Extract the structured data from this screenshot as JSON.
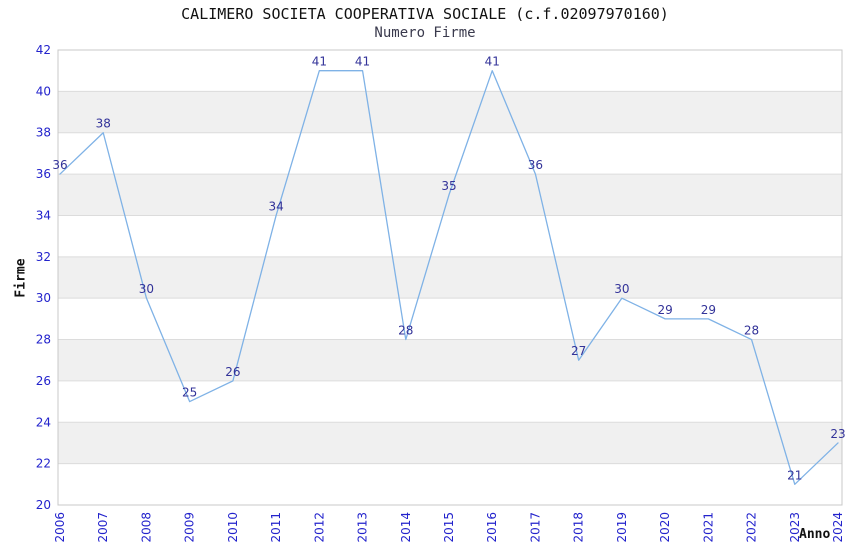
{
  "header": {
    "title": "CALIMERO SOCIETA COOPERATIVA SOCIALE (c.f.02097970160)",
    "subtitle": "Numero Firme"
  },
  "axes": {
    "ylabel": "Firme",
    "xlabel": "Anno"
  },
  "chart_data": {
    "type": "line",
    "title": "CALIMERO SOCIETA COOPERATIVA SOCIALE (c.f.02097970160)",
    "subtitle": "Numero Firme",
    "xlabel": "Anno",
    "ylabel": "Firme",
    "categories": [
      "2006",
      "2007",
      "2008",
      "2009",
      "2010",
      "2011",
      "2012",
      "2013",
      "2014",
      "2015",
      "2016",
      "2017",
      "2018",
      "2019",
      "2020",
      "2021",
      "2022",
      "2023",
      "2024"
    ],
    "values": [
      36,
      38,
      30,
      25,
      26,
      34,
      41,
      41,
      28,
      35,
      41,
      36,
      27,
      30,
      29,
      29,
      28,
      21,
      23
    ],
    "ylim": [
      20,
      42
    ],
    "ytick_step": 2,
    "grid": true,
    "legend": "none",
    "point_labels_visible": true,
    "x_tick_rotation_deg": -90,
    "background_style": "alternating horizontal gray bands every 2 units",
    "colors": {
      "line": "#7fb2e6",
      "point_label": "#333399",
      "tick_label": "#2323cc",
      "band": "#f0f0f0",
      "gridline": "#dcdcdc",
      "plot_border": "#c8c8c8",
      "title": "#111111",
      "subtitle": "#3a3a4d",
      "axis_label": "#111111",
      "background": "#ffffff"
    }
  }
}
